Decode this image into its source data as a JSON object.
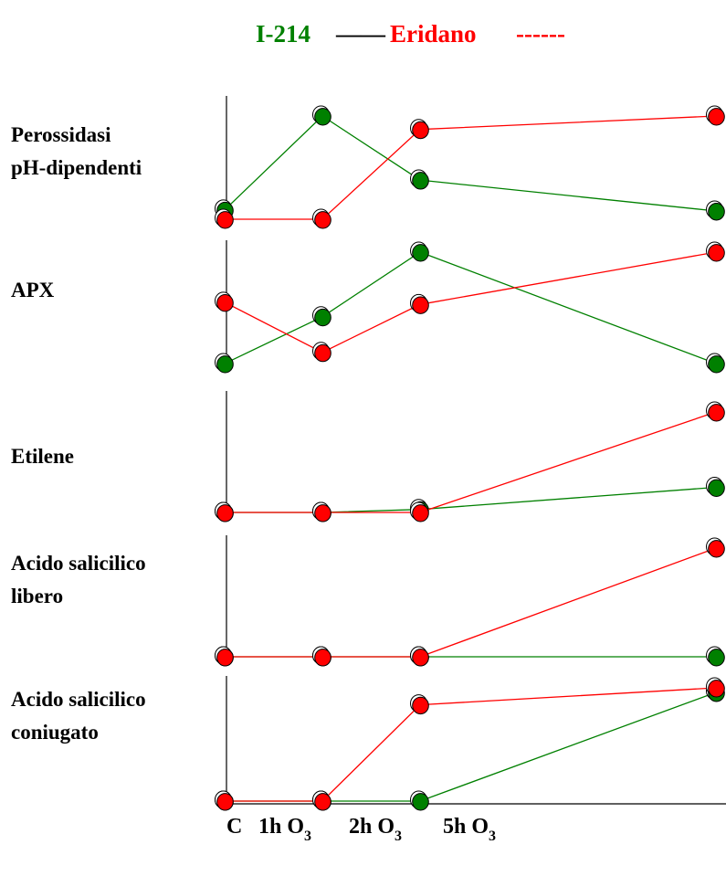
{
  "chart_data": {
    "type": "line",
    "legend": [
      {
        "name": "I-214",
        "marker": "——",
        "color": "#008000",
        "line": "solid"
      },
      {
        "name": "Eridano",
        "marker": "------",
        "color": "#ff0000",
        "line": "dashed"
      }
    ],
    "legend_placement": "top-center",
    "x": [
      "C",
      "1h O3",
      "2h O3",
      "5h O3"
    ],
    "x_tick_parts": [
      {
        "base": "C",
        "sub": ""
      },
      {
        "base": "1h O",
        "sub": "3"
      },
      {
        "base": "2h O",
        "sub": "3"
      },
      {
        "base": "5h O",
        "sub": "3"
      }
    ],
    "value_scale": "relative, 0 = panel baseline, 1 = panel top (no numeric axis printed)",
    "grid": false,
    "panels": [
      {
        "label_lines": [
          "Perossidasi",
          "pH-dipendenti"
        ],
        "series": [
          {
            "name": "I-214",
            "color": "#008000",
            "values": [
              0.09,
              1.0,
              0.38,
              0.08
            ]
          },
          {
            "name": "Eridano",
            "color": "#ff0000",
            "values": [
              0.0,
              0.0,
              0.87,
              1.0
            ]
          }
        ]
      },
      {
        "label_lines": [
          "APX"
        ],
        "series": [
          {
            "name": "I-214",
            "color": "#008000",
            "values": [
              0.0,
              0.42,
              1.0,
              0.0
            ]
          },
          {
            "name": "Eridano",
            "color": "#ff0000",
            "values": [
              0.55,
              0.1,
              0.53,
              1.0
            ]
          }
        ]
      },
      {
        "label_lines": [
          "Etilene"
        ],
        "series": [
          {
            "name": "I-214",
            "color": "#008000",
            "values": [
              0.0,
              0.0,
              0.03,
              0.25
            ]
          },
          {
            "name": "Eridano",
            "color": "#ff0000",
            "values": [
              0.0,
              0.0,
              0.0,
              1.0
            ]
          }
        ]
      },
      {
        "label_lines": [
          "Acido salicilico",
          "libero"
        ],
        "series": [
          {
            "name": "I-214",
            "color": "#008000",
            "values": [
              0.0,
              0.0,
              0.0,
              0.0
            ]
          },
          {
            "name": "Eridano",
            "color": "#ff0000",
            "values": [
              0.0,
              0.0,
              0.0,
              1.0
            ]
          }
        ]
      },
      {
        "label_lines": [
          "Acido salicilico",
          "coniugato"
        ],
        "series": [
          {
            "name": "I-214",
            "color": "#008000",
            "values": [
              0.0,
              0.0,
              0.0,
              0.96
            ]
          },
          {
            "name": "Eridano",
            "color": "#ff0000",
            "values": [
              0.0,
              0.0,
              0.85,
              1.0
            ]
          }
        ]
      }
    ]
  }
}
